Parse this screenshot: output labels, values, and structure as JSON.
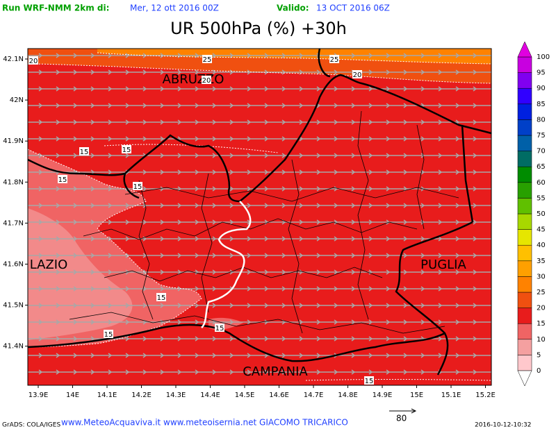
{
  "header": {
    "run_label": "Run WRF-NMM 2km di:",
    "run_date": "Mer, 12 ott 2016 00Z",
    "valid_label": "Valido:",
    "valid_date": "13 OCT 2016 06Z"
  },
  "title": "UR 500hPa (%) +30h",
  "map": {
    "lat_labels": [
      "42.1N",
      "42N",
      "41.9N",
      "41.8N",
      "41.7N",
      "41.6N",
      "41.5N",
      "41.4N"
    ],
    "lon_labels": [
      "13.9E",
      "14E",
      "14.1E",
      "14.2E",
      "14.3E",
      "14.4E",
      "14.5E",
      "14.6E",
      "14.7E",
      "14.8E",
      "14.9E",
      "15E",
      "15.1E",
      "15.2E"
    ],
    "regions": [
      "ABRUZZO",
      "LAZIO",
      "PUGLIA",
      "CAMPANIA"
    ],
    "contour_labels": [
      "20",
      "25",
      "25",
      "20",
      "20",
      "15",
      "15",
      "15",
      "15",
      "15",
      "15",
      "15",
      "15"
    ]
  },
  "colorbar": {
    "levels": [
      0,
      5,
      10,
      15,
      20,
      25,
      30,
      35,
      40,
      45,
      50,
      55,
      60,
      65,
      70,
      75,
      80,
      85,
      90,
      95,
      100
    ],
    "colors": [
      "#ffc8cc",
      "#f4a0a0",
      "#f06464",
      "#e81c1c",
      "#f05010",
      "#ff8200",
      "#ffa000",
      "#ffc000",
      "#e6e600",
      "#a8d800",
      "#60c000",
      "#28a000",
      "#008c00",
      "#006c64",
      "#0060a8",
      "#0040c8",
      "#0020e0",
      "#3000ff",
      "#8000f0",
      "#c800e0"
    ],
    "below_color": "#ffffff",
    "above_color": "#e000e0"
  },
  "footer": {
    "grads": "GrADS: COLA/IGES",
    "credits": "www.MeteoAcquaviva.it www.meteoisernia.net GIACOMO TRICARICO",
    "vector_ref": "80",
    "timestamp": "2016-10-12-10:32"
  }
}
